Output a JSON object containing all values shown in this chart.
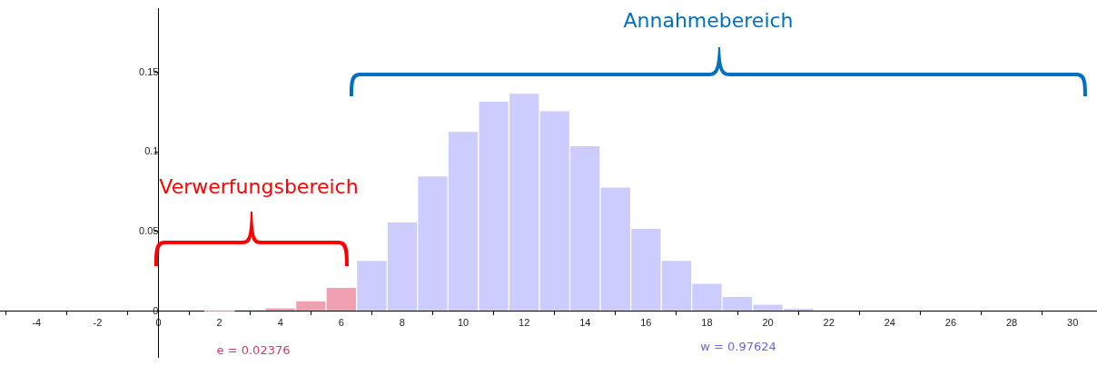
{
  "chart_data": {
    "type": "histogram",
    "bins": [
      -0.5,
      0.5,
      1.5,
      2.5,
      3.5,
      4.5,
      5.5,
      6.5,
      7.5,
      8.5,
      9.5,
      10.5,
      11.5,
      12.5,
      13.5,
      14.5,
      15.5,
      16.5,
      17.5,
      18.5,
      19.5,
      20.5,
      21.5,
      22.5,
      23.5,
      24.5,
      25.5,
      26.5,
      27.5,
      28.5,
      29.5
    ],
    "values": [
      0,
      0,
      0.0001,
      0.0006,
      0.0022,
      0.0066,
      0.015,
      0.032,
      0.056,
      0.085,
      0.113,
      0.132,
      0.137,
      0.126,
      0.104,
      0.078,
      0.052,
      0.032,
      0.0176,
      0.0093,
      0.0044,
      0.0018,
      null,
      null,
      0,
      0,
      0,
      0,
      0,
      0
    ],
    "colors": [
      "#f0a0b0",
      "#f0a0b0",
      "#f0a0b0",
      "#f0a0b0",
      "#f0a0b0",
      "#f0a0b0",
      "#f0a0b0",
      "#ccccff",
      "#ccccff",
      "#ccccff",
      "#ccccff",
      "#ccccff",
      "#ccccff",
      "#ccccff",
      "#ccccff",
      "#ccccff",
      "#ccccff",
      "#ccccff",
      "#ccccff",
      "#ccccff",
      "#ccccff",
      "#ccccff",
      "#ccccff",
      "#ccccff",
      "#ccccff",
      "#ccccff",
      "#ccccff",
      "#ccccff",
      "#ccccff",
      "#ccccff"
    ],
    "xlim": [
      -5.2,
      30.8
    ],
    "xticks": [
      -4,
      -2,
      0,
      2,
      4,
      6,
      8,
      10,
      12,
      14,
      16,
      18,
      20,
      22,
      24,
      26,
      28,
      30
    ],
    "ylim": [
      -0.029,
      0.19
    ],
    "yticks": [
      0,
      0.05,
      0.1,
      0.15
    ],
    "grid": false,
    "legend": false,
    "annotations": [
      "Verwerfungsbereich",
      "Annahmebereich",
      "e = 0.02376",
      "w = 0.97624"
    ]
  }
}
